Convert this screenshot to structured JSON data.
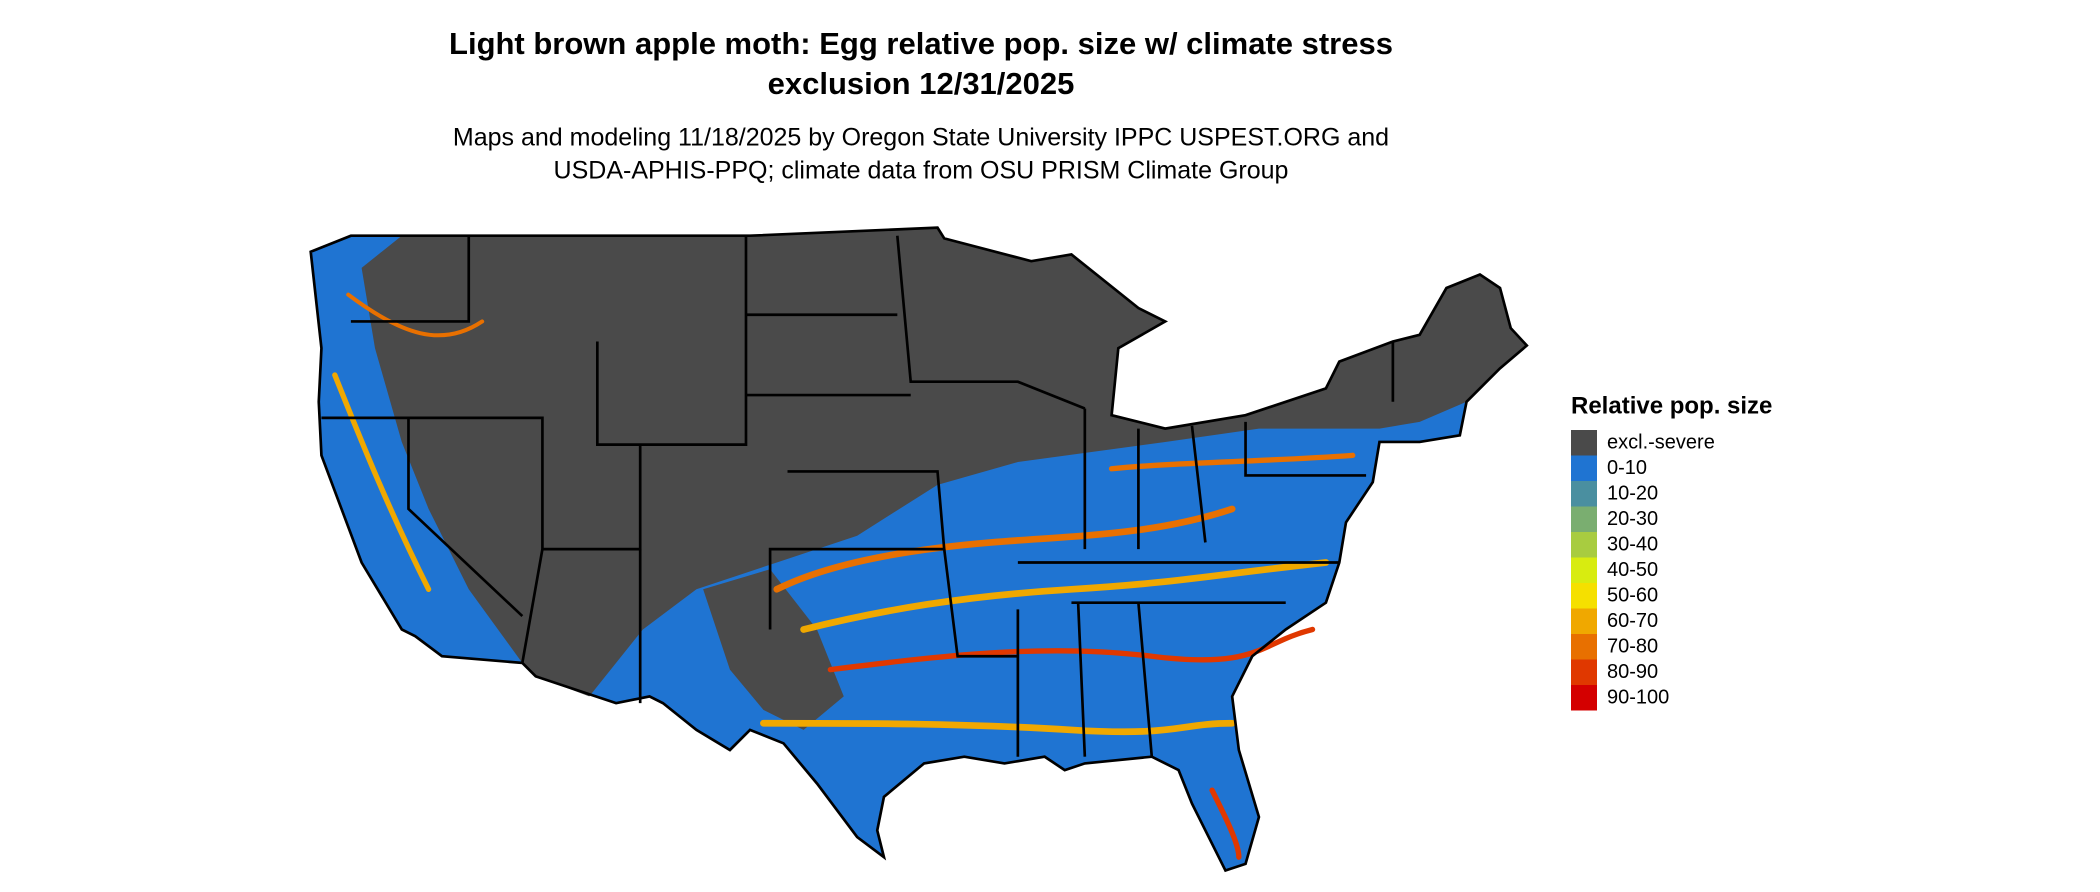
{
  "header": {
    "title": [
      "Light brown apple moth: Egg relative pop. size w/ climate stress",
      "exclusion 12/31/2025"
    ],
    "subtitle": [
      "Maps and modeling 11/18/2025 by Oregon State University IPPC USPEST.ORG and",
      "USDA-APHIS-PPQ; climate data from OSU PRISM Climate Group"
    ]
  },
  "legend": {
    "title": "Relative pop. size",
    "items": [
      {
        "label": "excl.-severe",
        "color": "#4a4a4a"
      },
      {
        "label": "0-10",
        "color": "#1f74d2"
      },
      {
        "label": "10-20",
        "color": "#4a8fa0"
      },
      {
        "label": "20-30",
        "color": "#7aae70"
      },
      {
        "label": "30-40",
        "color": "#a8cc40"
      },
      {
        "label": "40-50",
        "color": "#d8ec10"
      },
      {
        "label": "50-60",
        "color": "#f5e000"
      },
      {
        "label": "60-70",
        "color": "#f0a800"
      },
      {
        "label": "70-80",
        "color": "#e87000"
      },
      {
        "label": "80-90",
        "color": "#e03800"
      },
      {
        "label": "90-100",
        "color": "#d40000"
      }
    ]
  }
}
